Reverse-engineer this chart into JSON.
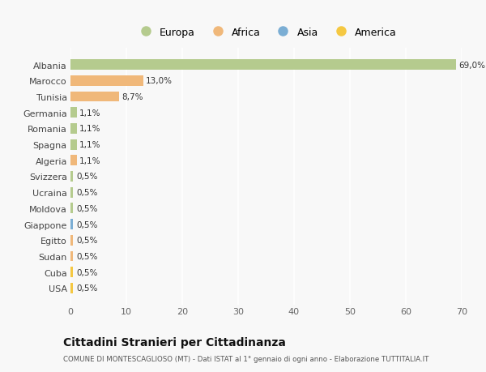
{
  "countries": [
    "Albania",
    "Marocco",
    "Tunisia",
    "Germania",
    "Romania",
    "Spagna",
    "Algeria",
    "Svizzera",
    "Ucraina",
    "Moldova",
    "Giappone",
    "Egitto",
    "Sudan",
    "Cuba",
    "USA"
  ],
  "values": [
    69.0,
    13.0,
    8.7,
    1.1,
    1.1,
    1.1,
    1.1,
    0.5,
    0.5,
    0.5,
    0.5,
    0.5,
    0.5,
    0.5,
    0.5
  ],
  "labels": [
    "69,0%",
    "13,0%",
    "8,7%",
    "1,1%",
    "1,1%",
    "1,1%",
    "1,1%",
    "0,5%",
    "0,5%",
    "0,5%",
    "0,5%",
    "0,5%",
    "0,5%",
    "0,5%",
    "0,5%"
  ],
  "colors": [
    "#b5cb8e",
    "#f0b87a",
    "#f0b87a",
    "#b5cb8e",
    "#b5cb8e",
    "#b5cb8e",
    "#f0b87a",
    "#b5cb8e",
    "#b5cb8e",
    "#b5cb8e",
    "#7baed4",
    "#f0b87a",
    "#f0b87a",
    "#f5c842",
    "#f5c842"
  ],
  "legend_labels": [
    "Europa",
    "Africa",
    "Asia",
    "America"
  ],
  "legend_colors": [
    "#b5cb8e",
    "#f0b87a",
    "#7baed4",
    "#f5c842"
  ],
  "title": "Cittadini Stranieri per Cittadinanza",
  "subtitle": "COMUNE DI MONTESCAGLIOSO (MT) - Dati ISTAT al 1° gennaio di ogni anno - Elaborazione TUTTITALIA.IT",
  "xlim": [
    0,
    70
  ],
  "xticks": [
    0,
    10,
    20,
    30,
    40,
    50,
    60,
    70
  ],
  "background_color": "#f8f8f8",
  "grid_color": "#ffffff",
  "bar_height": 0.65
}
